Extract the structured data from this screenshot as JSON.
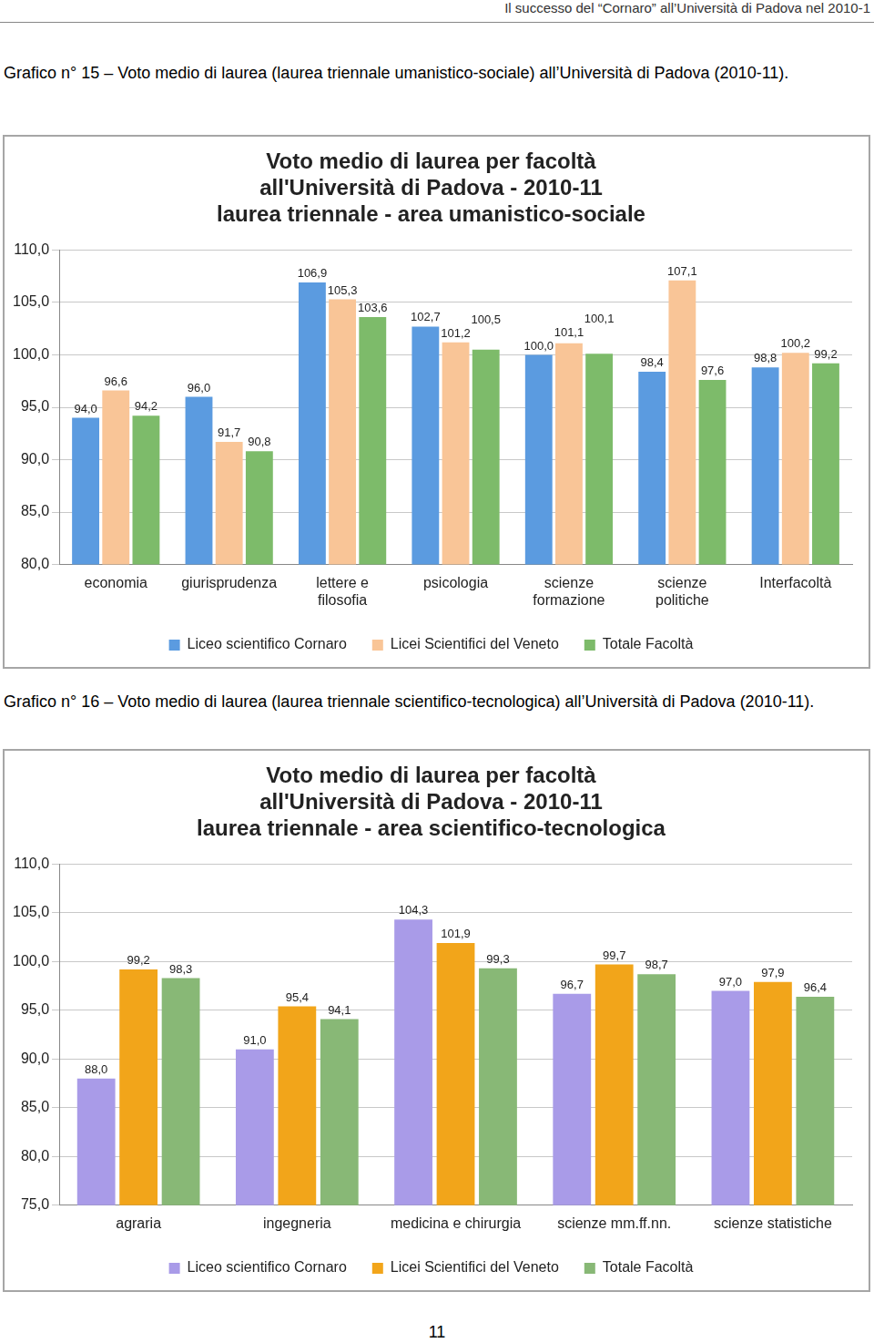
{
  "header": "Il successo del “Cornaro” all’Università di Padova nel 2010-1",
  "captions": [
    "Grafico n° 15 – Voto medio di laurea (laurea triennale umanistico-sociale) all’Università di Padova (2010-11).",
    "Grafico n° 16 – Voto medio di laurea (laurea triennale scientifico-tecnologica) all’Università di Padova (2010-11)."
  ],
  "page_number": "11",
  "chart_data": [
    {
      "type": "bar",
      "title": [
        "Voto medio di laurea per facoltà",
        "all'Università di Padova - 2010-11",
        "laurea triennale - area umanistico-sociale"
      ],
      "categories": [
        "economia",
        "giurisprudenza",
        "lettere e filosofia",
        "psicologia",
        "scienze formazione",
        "scienze politiche",
        "Interfacoltà"
      ],
      "series": [
        {
          "name": "Liceo scientifico Cornaro",
          "color": "#5b9be0",
          "values": [
            94.0,
            96.0,
            106.9,
            102.7,
            100.0,
            98.4,
            98.8
          ],
          "value_labels": [
            "94,0",
            "96,0",
            "106,9",
            "102,7",
            "100,0",
            "98,4",
            "98,8"
          ]
        },
        {
          "name": "Licei Scientifici del Veneto",
          "color": "#f9c597",
          "values": [
            96.6,
            91.7,
            105.3,
            101.2,
            101.1,
            107.1,
            100.2
          ],
          "value_labels": [
            "96,6",
            "91,7",
            "105,3",
            "101,2",
            "101,1",
            "107,1",
            "100,2"
          ]
        },
        {
          "name": "Totale Facoltà",
          "color": "#7dbb6a",
          "values": [
            94.2,
            90.8,
            103.6,
            100.5,
            100.1,
            97.6,
            99.2
          ],
          "value_labels": [
            "94,2",
            "90,8",
            "103,6",
            "100,5",
            "100,1",
            "97,6",
            "99,2"
          ]
        }
      ],
      "ylim": [
        80,
        110
      ],
      "yticks": [
        {
          "value": 80,
          "label": "80,0"
        },
        {
          "value": 85,
          "label": "85,0"
        },
        {
          "value": 90,
          "label": "90,0"
        },
        {
          "value": 95,
          "label": "95,0"
        },
        {
          "value": 100,
          "label": "100,0"
        },
        {
          "value": 105,
          "label": "105,0"
        },
        {
          "value": 110,
          "label": "110,0"
        }
      ],
      "grid": true,
      "legend": "bottom",
      "data_labels": true
    },
    {
      "type": "bar",
      "title": [
        "Voto medio di laurea per facoltà",
        "all'Università di Padova - 2010-11",
        "laurea triennale - area scientifico-tecnologica"
      ],
      "categories": [
        "agraria",
        "ingegneria",
        "medicina e chirurgia",
        "scienze mm.ff.nn.",
        "scienze statistiche"
      ],
      "series": [
        {
          "name": "Liceo scientifico Cornaro",
          "color": "#a99be8",
          "values": [
            88.0,
            91.0,
            104.3,
            96.7,
            97.0
          ],
          "value_labels": [
            "88,0",
            "91,0",
            "104,3",
            "96,7",
            "97,0"
          ]
        },
        {
          "name": "Licei Scientifici del Veneto",
          "color": "#f2a51a",
          "values": [
            99.2,
            95.4,
            101.9,
            99.7,
            97.9
          ],
          "value_labels": [
            "99,2",
            "95,4",
            "101,9",
            "99,7",
            "97,9"
          ]
        },
        {
          "name": "Totale Facoltà",
          "color": "#88b876",
          "values": [
            98.3,
            94.1,
            99.3,
            98.7,
            96.4
          ],
          "value_labels": [
            "98,3",
            "94,1",
            "99,3",
            "98,7",
            "96,4"
          ]
        }
      ],
      "ylim": [
        75,
        110
      ],
      "yticks": [
        {
          "value": 75,
          "label": "75,0"
        },
        {
          "value": 80,
          "label": "80,0"
        },
        {
          "value": 85,
          "label": "85,0"
        },
        {
          "value": 90,
          "label": "90,0"
        },
        {
          "value": 95,
          "label": "95,0"
        },
        {
          "value": 100,
          "label": "100,0"
        },
        {
          "value": 105,
          "label": "105,0"
        },
        {
          "value": 110,
          "label": "110,0"
        }
      ],
      "grid": true,
      "legend": "bottom",
      "data_labels": true
    }
  ]
}
